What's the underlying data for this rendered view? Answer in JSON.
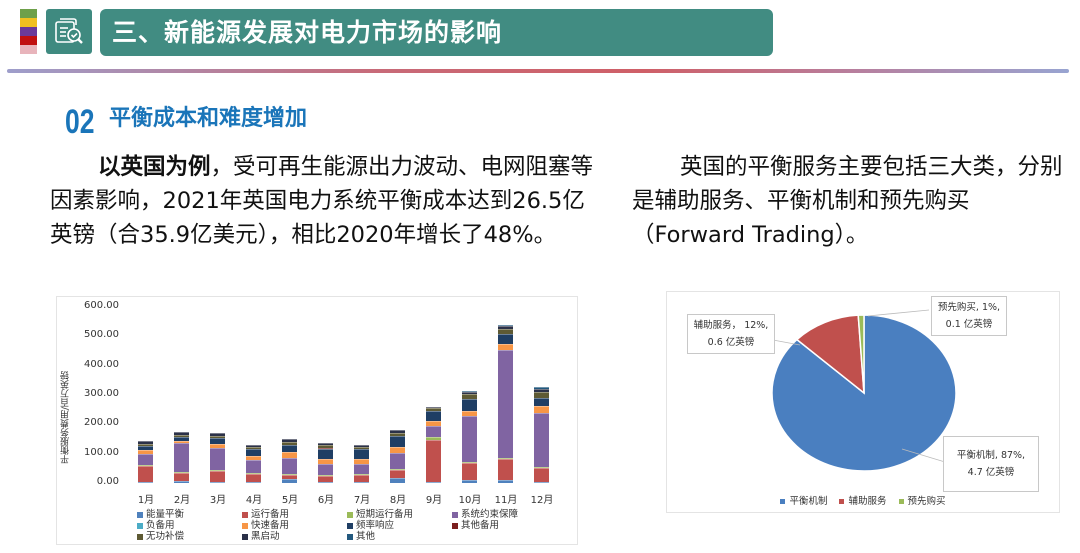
{
  "header": {
    "color_strips": [
      "#6ea04a",
      "#f0c020",
      "#6a3a9a",
      "#c01010",
      "#e8b4bb"
    ],
    "icon": "document-search-check-icon",
    "title": "三、新能源发展对电力市场的影响"
  },
  "section": {
    "number": "02",
    "title": "平衡成本和难度增加"
  },
  "left_paragraph": {
    "bold_lead": "以英国为例",
    "text": "，受可再生能源出力波动、电网阻塞等因素影响，2021年英国电力系统平衡成本达到26.5亿英镑（合35.9亿美元），相比2020年增长了48%。"
  },
  "right_paragraph": {
    "text": "英国的平衡服务主要包括三大类，分别是辅助服务、平衡机制和预先购买（Forward Trading）。"
  },
  "chart_data": [
    {
      "type": "bar",
      "stacked": true,
      "title": "",
      "xlabel": "",
      "ylabel": "平衡服务费用/百万英镑",
      "ylim": [
        0,
        600
      ],
      "yticks": [
        "0.00",
        "100.00",
        "200.00",
        "300.00",
        "400.00",
        "500.00",
        "600.00"
      ],
      "grid": false,
      "legend_position": "bottom",
      "categories": [
        "1月",
        "2月",
        "3月",
        "4月",
        "5月",
        "6月",
        "7月",
        "8月",
        "9月",
        "10月",
        "11月",
        "12月"
      ],
      "series": [
        {
          "name": "能量平衡",
          "color": "#4f81bd",
          "values": [
            3,
            8,
            3,
            5,
            15,
            5,
            2,
            17,
            2,
            10,
            10,
            3
          ]
        },
        {
          "name": "运行备用",
          "color": "#c0504d",
          "values": [
            55,
            25,
            38,
            25,
            12,
            18,
            25,
            28,
            145,
            58,
            72,
            48
          ]
        },
        {
          "name": "短期运行备用",
          "color": "#9bbb59",
          "values": [
            2,
            3,
            2,
            2,
            3,
            3,
            3,
            3,
            8,
            4,
            5,
            3
          ]
        },
        {
          "name": "系统约束保障",
          "color": "#8064a2",
          "values": [
            40,
            100,
            75,
            45,
            55,
            40,
            33,
            55,
            40,
            155,
            365,
            185
          ]
        },
        {
          "name": "负备用",
          "color": "#4bacc6",
          "values": [
            0,
            0,
            0,
            0,
            0,
            0,
            0,
            0,
            0,
            0,
            0,
            0
          ]
        },
        {
          "name": "快速备用",
          "color": "#f79646",
          "values": [
            12,
            6,
            13,
            16,
            20,
            18,
            18,
            18,
            15,
            18,
            23,
            22
          ]
        },
        {
          "name": "频率响应",
          "color": "#1f3e64",
          "values": [
            15,
            16,
            22,
            22,
            26,
            34,
            34,
            38,
            37,
            42,
            33,
            27
          ]
        },
        {
          "name": "其他备用",
          "color": "#7b1f1f",
          "values": [
            0,
            0,
            0,
            0,
            0,
            2,
            0,
            0,
            0,
            0,
            0,
            0
          ]
        },
        {
          "name": "无功补偿",
          "color": "#5e5a34",
          "values": [
            6,
            6,
            6,
            6,
            8,
            8,
            9,
            13,
            8,
            15,
            18,
            22
          ]
        },
        {
          "name": "黑启动",
          "color": "#2b3148",
          "values": [
            10,
            9,
            10,
            7,
            10,
            10,
            5,
            8,
            5,
            8,
            8,
            10
          ]
        },
        {
          "name": "其他",
          "color": "#23597e",
          "values": [
            0,
            0,
            0,
            0,
            0,
            0,
            0,
            0,
            0,
            5,
            6,
            7
          ]
        }
      ],
      "totals_approx": [
        143,
        173,
        169,
        128,
        149,
        138,
        129,
        180,
        260,
        315,
        540,
        327
      ]
    },
    {
      "type": "pie",
      "title": "",
      "legend_position": "bottom",
      "categories": [
        "平衡机制",
        "辅助服务",
        "预先购买"
      ],
      "values": [
        87,
        12,
        1
      ],
      "amounts": [
        "4.7 亿英镑",
        "0.6 亿英镑",
        "0.1 亿英镑"
      ],
      "colors": [
        "#4a7fc0",
        "#c0504d",
        "#9bbb59"
      ],
      "labels": [
        {
          "line1": "平衡机制, 87%,",
          "line2": "4.7 亿英镑"
        },
        {
          "line1": "辅助服务， 12%,",
          "line2": "0.6 亿英镑"
        },
        {
          "line1": "预先购买, 1%,",
          "line2": "0.1 亿英镑"
        }
      ]
    }
  ]
}
